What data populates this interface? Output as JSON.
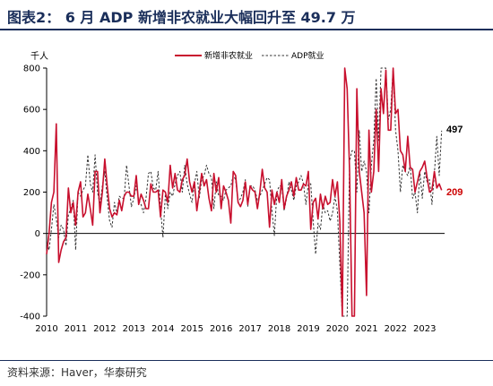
{
  "header": {
    "title": "图表2：  6 月 ADP 新增非农就业大幅回升至 49.7 万"
  },
  "footer": {
    "source": "资料来源：Haver，华泰研究"
  },
  "chart_data": {
    "type": "line",
    "ylabel": "千人",
    "ylim": [
      -400,
      800
    ],
    "yticks": [
      -400,
      -200,
      0,
      200,
      400,
      600,
      800
    ],
    "xlim": [
      2010,
      2023.5
    ],
    "xticks": [
      2010,
      2011,
      2012,
      2013,
      2014,
      2015,
      2016,
      2017,
      2018,
      2019,
      2020,
      2021,
      2022,
      2023
    ],
    "legend_position": "top",
    "end_labels": [
      {
        "series": "ADP就业",
        "value": "497",
        "color": "#000000"
      },
      {
        "series": "新增非农就业",
        "value": "209",
        "color": "#cc0000"
      }
    ],
    "series": [
      {
        "name": "新增非农就业",
        "color": "#c8102e",
        "style": "solid",
        "start": 2010.0,
        "step": 0.0833333,
        "values": [
          -100,
          0,
          150,
          200,
          530,
          -140,
          -80,
          -40,
          -20,
          220,
          100,
          150,
          40,
          200,
          250,
          80,
          100,
          190,
          120,
          40,
          300,
          300,
          100,
          200,
          360,
          230,
          120,
          80,
          100,
          90,
          160,
          110,
          180,
          200,
          200,
          180,
          180,
          280,
          140,
          190,
          160,
          120,
          120,
          240,
          200,
          200,
          210,
          80,
          210,
          200,
          150,
          330,
          220,
          290,
          210,
          200,
          260,
          280,
          360,
          250,
          200,
          250,
          110,
          200,
          290,
          230,
          260,
          170,
          110,
          290,
          200,
          270,
          120,
          230,
          200,
          160,
          50,
          300,
          280,
          150,
          130,
          160,
          250,
          140,
          230,
          210,
          200,
          120,
          200,
          310,
          220,
          200,
          30,
          210,
          140,
          200,
          150,
          260,
          120,
          180,
          210,
          250,
          180,
          270,
          210,
          210,
          240,
          230,
          300,
          20,
          150,
          170,
          70,
          190,
          120,
          180,
          140,
          150,
          260,
          180,
          250,
          60,
          -400,
          800,
          700,
          300,
          -400,
          -400,
          700,
          300,
          200,
          100,
          -300,
          500,
          200,
          300,
          600,
          300,
          700,
          580,
          790,
          500,
          500,
          800,
          580,
          600,
          400,
          380,
          300,
          470,
          320,
          310,
          200,
          250,
          300,
          320,
          350,
          270,
          200,
          210,
          300,
          220,
          240,
          209
        ]
      },
      {
        "name": "ADP就业",
        "color": "#333333",
        "style": "dashed",
        "start": 2010.0,
        "step": 0.0833333,
        "values": [
          -50,
          -80,
          20,
          140,
          70,
          -20,
          40,
          20,
          -60,
          90,
          120,
          160,
          -80,
          200,
          180,
          210,
          230,
          380,
          240,
          200,
          380,
          200,
          140,
          230,
          300,
          170,
          60,
          30,
          150,
          100,
          180,
          170,
          170,
          330,
          230,
          130,
          170,
          230,
          160,
          140,
          100,
          170,
          290,
          300,
          220,
          210,
          300,
          120,
          -20,
          190,
          120,
          200,
          180,
          240,
          280,
          300,
          200,
          330,
          240,
          190,
          150,
          240,
          300,
          170,
          260,
          280,
          330,
          290,
          270,
          120,
          250,
          180,
          180,
          160,
          210,
          220,
          230,
          280,
          260,
          150,
          170,
          200,
          260,
          130,
          230,
          230,
          210,
          160,
          180,
          210,
          240,
          270,
          260,
          110,
          -10,
          200,
          230,
          230,
          110,
          170,
          250,
          210,
          160,
          230,
          250,
          280,
          240,
          140,
          240,
          240,
          60,
          -100,
          50,
          20,
          140,
          100,
          110,
          60,
          100,
          180,
          110,
          -150,
          -400,
          -400,
          -400,
          350,
          400,
          400,
          200,
          500,
          300,
          350,
          300,
          100,
          330,
          450,
          750,
          450,
          800,
          800,
          800,
          550,
          600,
          800,
          500,
          400,
          200,
          330,
          300,
          280,
          330,
          170,
          200,
          100,
          300,
          170,
          300,
          250,
          260,
          140,
          290,
          470,
          280,
          497
        ]
      }
    ]
  }
}
